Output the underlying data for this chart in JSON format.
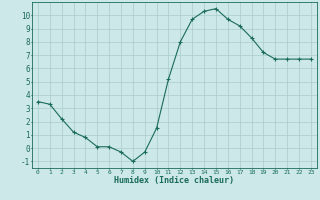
{
  "x": [
    0,
    1,
    2,
    3,
    4,
    5,
    6,
    7,
    8,
    9,
    10,
    11,
    12,
    13,
    14,
    15,
    16,
    17,
    18,
    19,
    20,
    21,
    22,
    23
  ],
  "y": [
    3.5,
    3.3,
    2.2,
    1.2,
    0.8,
    0.1,
    0.1,
    -0.3,
    -1.0,
    -0.3,
    1.5,
    5.2,
    8.0,
    9.7,
    10.3,
    10.5,
    9.7,
    9.2,
    8.3,
    7.2,
    6.7,
    6.7,
    6.7,
    6.7
  ],
  "line_color": "#1a6b5a",
  "marker": "+",
  "marker_size": 3,
  "background_color": "#cce8e8",
  "grid_color": "#aacccc",
  "xlabel": "Humidex (Indice chaleur)",
  "xlim": [
    -0.5,
    23.5
  ],
  "ylim": [
    -1.5,
    11.0
  ],
  "xticks": [
    0,
    1,
    2,
    3,
    4,
    5,
    6,
    7,
    8,
    9,
    10,
    11,
    12,
    13,
    14,
    15,
    16,
    17,
    18,
    19,
    20,
    21,
    22,
    23
  ],
  "yticks": [
    -1,
    0,
    1,
    2,
    3,
    4,
    5,
    6,
    7,
    8,
    9,
    10
  ],
  "tick_color": "#1a6b5a",
  "label_color": "#1a6b5a",
  "spine_color": "#1a6b5a",
  "xlabel_fontsize": 6.0,
  "xtick_fontsize": 4.5,
  "ytick_fontsize": 5.5
}
